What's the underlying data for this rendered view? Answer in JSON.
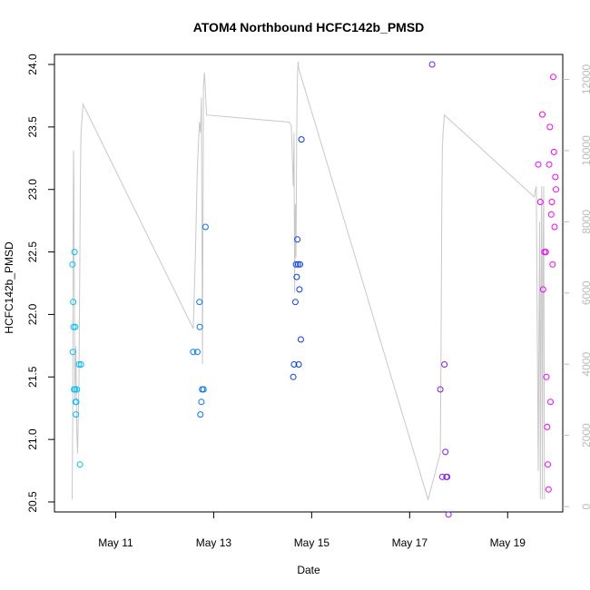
{
  "chart_data": {
    "type": "scatter",
    "title": "ATOM4 Northbound HCFC142b_PMSD",
    "xlabel": "Date",
    "ylabel": "HCFC142b_PMSD",
    "x_ticks": [
      "May 11",
      "May 13",
      "May 15",
      "May 17",
      "May 19"
    ],
    "xlim": [
      "2016-05-09 18:00",
      "2016-05-20 03:00"
    ],
    "ylim": [
      20.42,
      24.08
    ],
    "y_ticks": [
      "20.5",
      "21.0",
      "21.5",
      "22.0",
      "22.5",
      "23.0",
      "23.5",
      "24.0"
    ],
    "y2_ticks": [
      "0",
      "2000",
      "4000",
      "6000",
      "8000",
      "10000",
      "12000"
    ],
    "y2lim": [
      -150,
      12700
    ],
    "grid": false,
    "colors": {
      "axis": "#000000",
      "right_axis": "#bbbbbb",
      "altitude_line": "#c8c8c8",
      "point_palette_start": "#00bfff",
      "point_palette_mid": "#0033ff",
      "point_palette_end": "#ff00ff"
    },
    "series": [
      {
        "type": "scatter",
        "points": [
          [
            "2016-05-10 02:50",
            22.4
          ],
          [
            "2016-05-10 03:00",
            21.7
          ],
          [
            "2016-05-10 03:10",
            22.1
          ],
          [
            "2016-05-10 03:20",
            21.9
          ],
          [
            "2016-05-10 03:40",
            21.4
          ],
          [
            "2016-05-10 03:50",
            22.5
          ],
          [
            "2016-05-10 04:00",
            21.4
          ],
          [
            "2016-05-10 04:10",
            21.9
          ],
          [
            "2016-05-10 04:20",
            21.3
          ],
          [
            "2016-05-10 04:30",
            21.2
          ],
          [
            "2016-05-10 04:40",
            21.3
          ],
          [
            "2016-05-10 05:00",
            21.4
          ],
          [
            "2016-05-10 06:00",
            21.6
          ],
          [
            "2016-05-10 06:30",
            20.8
          ],
          [
            "2016-05-10 07:00",
            21.6
          ],
          [
            "2016-05-12 14:00",
            21.7
          ],
          [
            "2016-05-12 16:00",
            21.7
          ],
          [
            "2016-05-12 17:00",
            22.1
          ],
          [
            "2016-05-12 17:10",
            21.9
          ],
          [
            "2016-05-12 17:30",
            21.2
          ],
          [
            "2016-05-12 18:00",
            21.3
          ],
          [
            "2016-05-12 18:20",
            21.4
          ],
          [
            "2016-05-12 19:00",
            21.4
          ],
          [
            "2016-05-12 20:00",
            22.7
          ],
          [
            "2016-05-14 15:00",
            21.5
          ],
          [
            "2016-05-14 15:20",
            21.6
          ],
          [
            "2016-05-14 16:00",
            22.1
          ],
          [
            "2016-05-14 16:20",
            22.4
          ],
          [
            "2016-05-14 16:40",
            22.3
          ],
          [
            "2016-05-14 17:00",
            22.6
          ],
          [
            "2016-05-14 17:20",
            22.4
          ],
          [
            "2016-05-14 17:40",
            21.6
          ],
          [
            "2016-05-14 18:00",
            22.2
          ],
          [
            "2016-05-14 18:20",
            22.4
          ],
          [
            "2016-05-14 18:40",
            21.8
          ],
          [
            "2016-05-14 19:00",
            23.4
          ],
          [
            "2016-05-17 11:00",
            24.0
          ],
          [
            "2016-05-17 15:00",
            21.4
          ],
          [
            "2016-05-17 16:00",
            20.7
          ],
          [
            "2016-05-17 17:00",
            21.6
          ],
          [
            "2016-05-17 17:30",
            20.9
          ],
          [
            "2016-05-17 18:00",
            20.7
          ],
          [
            "2016-05-17 18:20",
            20.7
          ],
          [
            "2016-05-17 19:00",
            20.4
          ],
          [
            "2016-05-19 15:00",
            23.2
          ],
          [
            "2016-05-19 16:00",
            22.9
          ],
          [
            "2016-05-19 17:00",
            23.6
          ],
          [
            "2016-05-19 17:20",
            22.2
          ],
          [
            "2016-05-19 18:00",
            22.5
          ],
          [
            "2016-05-19 18:40",
            22.5
          ],
          [
            "2016-05-19 19:00",
            21.5
          ],
          [
            "2016-05-19 19:20",
            21.1
          ],
          [
            "2016-05-19 19:40",
            20.8
          ],
          [
            "2016-05-19 20:00",
            20.6
          ],
          [
            "2016-05-19 20:20",
            23.2
          ],
          [
            "2016-05-19 20:40",
            23.5
          ],
          [
            "2016-05-19 21:00",
            21.3
          ],
          [
            "2016-05-19 21:20",
            22.8
          ],
          [
            "2016-05-19 21:40",
            22.9
          ],
          [
            "2016-05-19 22:00",
            22.4
          ],
          [
            "2016-05-19 22:20",
            23.9
          ],
          [
            "2016-05-19 22:40",
            23.3
          ],
          [
            "2016-05-19 23:00",
            22.7
          ],
          [
            "2016-05-19 23:20",
            23.1
          ],
          [
            "2016-05-19 23:40",
            23.0
          ]
        ]
      },
      {
        "type": "line",
        "axis": "right",
        "points": [
          [
            "2016-05-10 02:40",
            200
          ],
          [
            "2016-05-10 03:00",
            3000
          ],
          [
            "2016-05-10 03:10",
            8000
          ],
          [
            "2016-05-10 03:20",
            10000
          ],
          [
            "2016-05-10 03:30",
            9000
          ],
          [
            "2016-05-10 03:40",
            7000
          ],
          [
            "2016-05-10 03:50",
            5000
          ],
          [
            "2016-05-10 04:00",
            3000
          ],
          [
            "2016-05-10 04:30",
            4500
          ],
          [
            "2016-05-10 05:00",
            2000
          ],
          [
            "2016-05-10 05:20",
            1500
          ],
          [
            "2016-05-10 06:00",
            3500
          ],
          [
            "2016-05-10 06:20",
            6000
          ],
          [
            "2016-05-10 06:40",
            9000
          ],
          [
            "2016-05-10 07:00",
            10500
          ],
          [
            "2016-05-10 08:00",
            11300
          ],
          [
            "2016-05-12 14:00",
            5000
          ],
          [
            "2016-05-12 15:00",
            7000
          ],
          [
            "2016-05-12 16:00",
            9500
          ],
          [
            "2016-05-12 17:00",
            10800
          ],
          [
            "2016-05-12 17:30",
            10500
          ],
          [
            "2016-05-12 18:00",
            11500
          ],
          [
            "2016-05-12 18:30",
            4000
          ],
          [
            "2016-05-12 19:00",
            11800
          ],
          [
            "2016-05-12 19:30",
            12200
          ],
          [
            "2016-05-12 20:30",
            11000
          ],
          [
            "2016-05-14 13:00",
            10800
          ],
          [
            "2016-05-14 14:00",
            10700
          ],
          [
            "2016-05-14 15:00",
            9000
          ],
          [
            "2016-05-14 15:20",
            10500
          ],
          [
            "2016-05-14 15:40",
            6000
          ],
          [
            "2016-05-14 16:00",
            8500
          ],
          [
            "2016-05-14 16:20",
            7000
          ],
          [
            "2016-05-14 16:40",
            10500
          ],
          [
            "2016-05-14 17:00",
            12000
          ],
          [
            "2016-05-14 17:20",
            12500
          ],
          [
            "2016-05-14 17:40",
            12300
          ],
          [
            "2016-05-17 09:00",
            200
          ],
          [
            "2016-05-17 15:00",
            1500
          ],
          [
            "2016-05-17 15:20",
            4000
          ],
          [
            "2016-05-17 15:40",
            8000
          ],
          [
            "2016-05-17 16:00",
            10000
          ],
          [
            "2016-05-17 16:20",
            10500
          ],
          [
            "2016-05-17 17:00",
            11000
          ],
          [
            "2016-05-19 13:00",
            8700
          ],
          [
            "2016-05-19 14:00",
            9000
          ],
          [
            "2016-05-19 15:00",
            1000
          ],
          [
            "2016-05-19 15:20",
            5000
          ],
          [
            "2016-05-19 15:40",
            8000
          ],
          [
            "2016-05-19 16:00",
            200
          ],
          [
            "2016-05-19 16:20",
            6000
          ],
          [
            "2016-05-19 16:40",
            9000
          ],
          [
            "2016-05-19 17:00",
            200
          ],
          [
            "2016-05-19 17:20",
            7000
          ],
          [
            "2016-05-19 17:40",
            9000
          ],
          [
            "2016-05-19 18:00",
            200
          ]
        ]
      }
    ]
  }
}
